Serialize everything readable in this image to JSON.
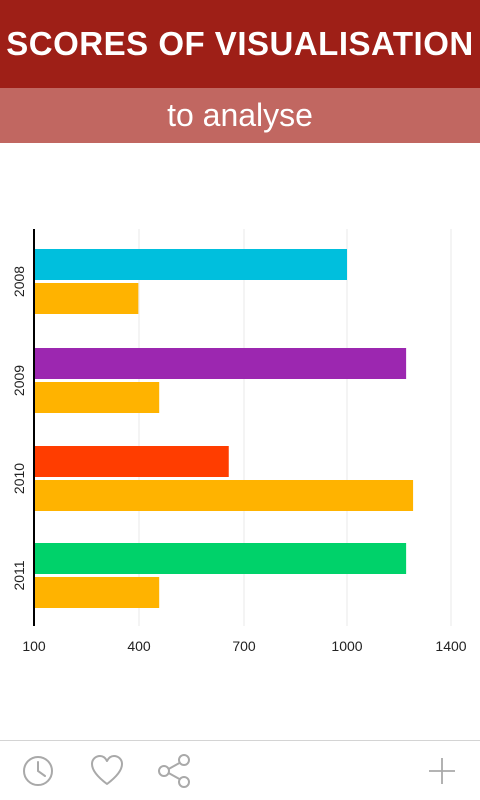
{
  "header": {
    "title": "SCORES OF VISUALISATION",
    "subtitle": "to analyse"
  },
  "colors": {
    "header_primary": "#9e1f17",
    "header_secondary": "#c16761",
    "series_a": [
      "#00bfdd",
      "#9c27b0",
      "#ff3d00",
      "#00d26a"
    ],
    "series_b": "#ffb300",
    "icon": "#a9a9a9"
  },
  "chart_data": {
    "type": "bar",
    "orientation": "horizontal",
    "categories": [
      "2008",
      "2009",
      "2010",
      "2011"
    ],
    "series": [
      {
        "values": [
          1000,
          1170,
          660,
          1170
        ]
      },
      {
        "values": [
          400,
          460,
          1190,
          460
        ]
      }
    ],
    "xticks": [
      100,
      400,
      700,
      1000,
      1400
    ],
    "xlim": [
      100,
      1300
    ],
    "grid": true
  },
  "toolbar": {
    "icons": [
      "clock-icon",
      "heart-icon",
      "share-icon",
      "plus-icon"
    ]
  }
}
